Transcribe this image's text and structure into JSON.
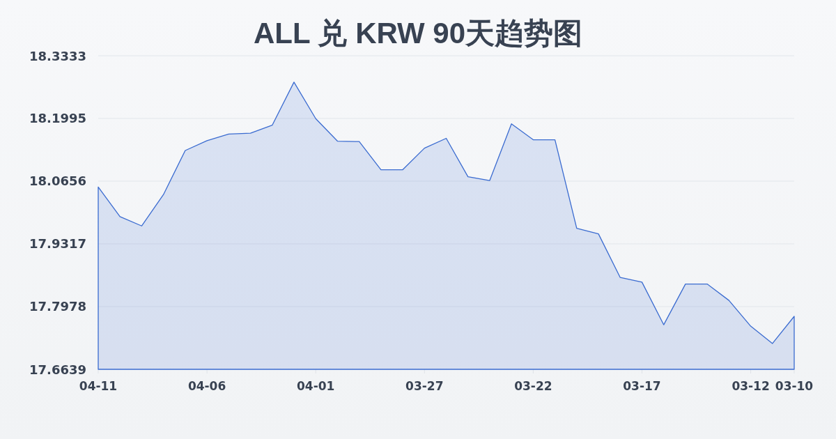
{
  "chart_data": {
    "type": "area",
    "title": "ALL 兑 KRW 90天趋势图",
    "categories": [
      "04-11",
      null,
      null,
      null,
      null,
      "04-06",
      null,
      null,
      null,
      null,
      "04-01",
      null,
      null,
      null,
      null,
      "03-27",
      null,
      null,
      null,
      null,
      "03-22",
      null,
      null,
      null,
      null,
      "03-17",
      null,
      null,
      null,
      null,
      "03-12",
      null,
      "03-10"
    ],
    "values": [
      18.053,
      17.99,
      17.97,
      18.037,
      18.131,
      18.152,
      18.166,
      18.168,
      18.185,
      18.277,
      18.199,
      18.151,
      18.15,
      18.09,
      18.09,
      18.136,
      18.157,
      18.075,
      18.067,
      18.188,
      18.154,
      18.154,
      17.965,
      17.953,
      17.86,
      17.85,
      17.759,
      17.846,
      17.846,
      17.811,
      17.756,
      17.719,
      17.777
    ],
    "color": "#3a6bd0",
    "ylim": [
      17.6639,
      18.3333
    ],
    "yticks": [
      17.6639,
      17.7978,
      17.9317,
      18.0656,
      18.1995,
      18.3333
    ],
    "grid": "y"
  }
}
